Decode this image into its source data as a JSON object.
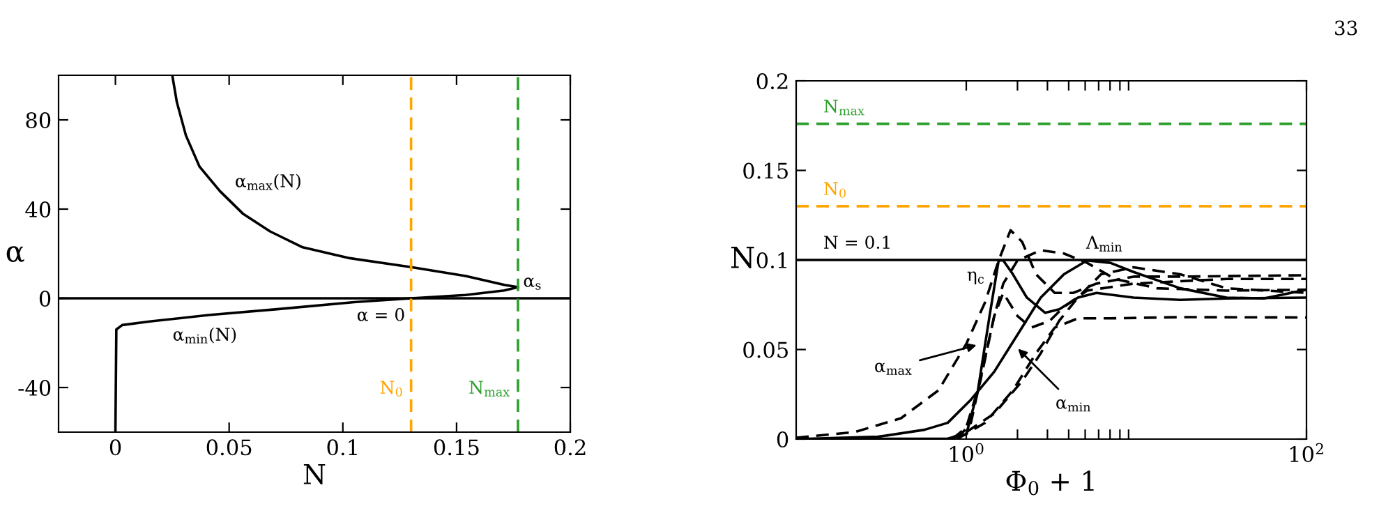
{
  "chart_data": [
    {
      "type": "line",
      "xlabel": "N",
      "ylabel": "α",
      "xlim": [
        -0.025,
        0.2
      ],
      "ylim": [
        -60,
        100
      ],
      "xticks": [
        0,
        0.05,
        0.1,
        0.15,
        0.2
      ],
      "yticks": [
        -40,
        0,
        40,
        80
      ],
      "grid": false,
      "legend": false,
      "line_style": "solid",
      "marker": "none",
      "series": [
        {
          "color": "#000000",
          "x": [
            0.025,
            0.027,
            0.031,
            0.037,
            0.046,
            0.056,
            0.068,
            0.082,
            0.103,
            0.13,
            0.154,
            0.171,
            0.177
          ],
          "values": [
            100,
            88,
            73,
            59,
            48,
            38,
            30,
            23,
            18,
            14,
            10,
            6,
            5
          ]
        },
        {
          "color": "#000000",
          "x": [
            0.177,
            0.171,
            0.154,
            0.13,
            0.105,
            0.072,
            0.041,
            0.015,
            0.003,
            0.0004,
            0
          ],
          "values": [
            5,
            3.5,
            1.5,
            0,
            -1.7,
            -4.8,
            -7.5,
            -10.4,
            -12,
            -14,
            -60
          ]
        }
      ],
      "ref_lines": [
        {
          "axis": "y",
          "value": 0,
          "color": "#000000",
          "line_style": "solid"
        },
        {
          "axis": "x",
          "value": 0.13,
          "label": "N$_{0}$",
          "color": "#ffa500",
          "line_style": "dashed"
        },
        {
          "axis": "x",
          "value": 0.177,
          "label": "N$_{max}$",
          "color": "#2ca02c",
          "line_style": "dashed"
        }
      ],
      "annotations": [
        "α$_{max}$(N)",
        "α$_{min}$(N)",
        "α = 0",
        "α$_{s}$"
      ]
    },
    {
      "type": "line",
      "xlabel": "Φ$_{0}$ + 1",
      "ylabel": "N",
      "log": "x",
      "xlim": [
        0.1,
        100
      ],
      "ylim": [
        0,
        0.2
      ],
      "xticks": [
        {
          "value": 1,
          "label": "10$^{0}$"
        },
        {
          "value": 2,
          "label": null
        },
        {
          "value": 3,
          "label": null
        },
        {
          "value": 4,
          "label": null
        },
        {
          "value": 5,
          "label": null
        },
        {
          "value": 6,
          "label": null
        },
        {
          "value": 7,
          "label": null
        },
        {
          "value": 8,
          "label": null
        },
        {
          "value": 9,
          "label": null
        },
        {
          "value": 100,
          "label": "10$^{2}$"
        }
      ],
      "yticks": [
        0,
        0.05,
        0.1,
        0.15,
        0.2
      ],
      "grid": false,
      "legend": false,
      "marker": "none",
      "series": [
        {
          "color": "#000000",
          "line_style": "solid",
          "x": [
            0.1,
            0.778,
            1,
            1.17,
            1.37,
            1.55,
            1.65,
            1.88,
            2.27,
            2.91,
            3.52,
            4.53,
            5.82,
            9.63,
            18.1,
            33.9,
            100
          ],
          "values": [
            0,
            0.0003,
            0.0026,
            0.027,
            0.0687,
            0.0997,
            0.0997,
            0.092,
            0.079,
            0.0705,
            0.0725,
            0.079,
            0.0816,
            0.079,
            0.0777,
            0.0785,
            0.079
          ]
        },
        {
          "color": "#000000",
          "line_style": "solid",
          "x": [
            0.1,
            0.303,
            0.568,
            0.778,
            1.065,
            1.46,
            2.0,
            2.74,
            3.75,
            5.13,
            7.03,
            9.63,
            18.1,
            33.9,
            56.1,
            100
          ],
          "values": [
            0,
            0.0013,
            0.0052,
            0.0091,
            0.022,
            0.0376,
            0.0583,
            0.079,
            0.092,
            0.0997,
            0.0984,
            0.0933,
            0.0842,
            0.079,
            0.0785,
            0.0834
          ]
        },
        {
          "color": "#000000",
          "line_style": "dashed",
          "x": [
            0.1,
            0.221,
            0.414,
            0.686,
            1,
            1.29,
            1.55,
            1.82,
            2.13,
            2.57,
            3.31,
            4.25,
            5.82,
            9.63,
            18.1,
            100
          ],
          "values": [
            0.0008,
            0.0039,
            0.0117,
            0.0272,
            0.0531,
            0.0764,
            0.0997,
            0.1166,
            0.1101,
            0.092,
            0.0816,
            0.0816,
            0.0868,
            0.0907,
            0.0907,
            0.0915
          ]
        },
        {
          "color": "#000000",
          "line_style": "dashed",
          "x": [
            0.828,
            1,
            1.21,
            1.46,
            1.65,
            2.0,
            2.74,
            3.75,
            5.13,
            7.49,
            13.2,
            33.9,
            100
          ],
          "values": [
            0,
            0.0065,
            0.0324,
            0.0687,
            0.0868,
            0.0997,
            0.1054,
            0.1036,
            0.0984,
            0.0894,
            0.0842,
            0.0829,
            0.0834
          ]
        },
        {
          "color": "#000000",
          "line_style": "dashed",
          "x": [
            0.882,
            1.065,
            1.29,
            1.46,
            1.65,
            2.0,
            2.41,
            3.1,
            3.75,
            5.13,
            9.63,
            33.9,
            100
          ],
          "values": [
            0,
            0.0091,
            0.0453,
            0.0687,
            0.0816,
            0.0687,
            0.0622,
            0.0661,
            0.0738,
            0.0829,
            0.0868,
            0.0894,
            0.0894
          ]
        },
        {
          "color": "#000000",
          "line_style": "dashed",
          "x": [
            0.778,
            1,
            1.46,
            2.13,
            2.74,
            3.52,
            4.53,
            6.2,
            9.63,
            18.1,
            33.9,
            100
          ],
          "values": [
            0,
            0.0039,
            0.0142,
            0.0324,
            0.0479,
            0.0661,
            0.079,
            0.092,
            0.0959,
            0.092,
            0.0842,
            0.0816
          ]
        },
        {
          "color": "#000000",
          "line_style": "dashed",
          "x": [
            0.882,
            1.29,
            1.88,
            2.57,
            3.31,
            4.53,
            7.03,
            18.1,
            100
          ],
          "values": [
            0,
            0.0091,
            0.0272,
            0.0479,
            0.0622,
            0.0674,
            0.0674,
            0.0681,
            0.0679
          ]
        }
      ],
      "ref_lines": [
        {
          "axis": "y",
          "value": 0.1,
          "label": "N = 0.1",
          "color": "#000000",
          "line_style": "solid"
        },
        {
          "axis": "y",
          "value": 0.13,
          "label": "N$_{0}$",
          "color": "#ffa500",
          "line_style": "dashed"
        },
        {
          "axis": "y",
          "value": 0.176,
          "label": "N$_{max}$",
          "color": "#2ca02c",
          "line_style": "dashed"
        }
      ],
      "annotations": [
        "η$_{c}$",
        "Λ$_{min}$",
        {
          "text": "α$_{max}$",
          "x": 1.21,
          "y": 0.053
        },
        {
          "text": "α$_{min}$",
          "x": 1.94,
          "y": 0.052
        },
        "33"
      ]
    }
  ]
}
